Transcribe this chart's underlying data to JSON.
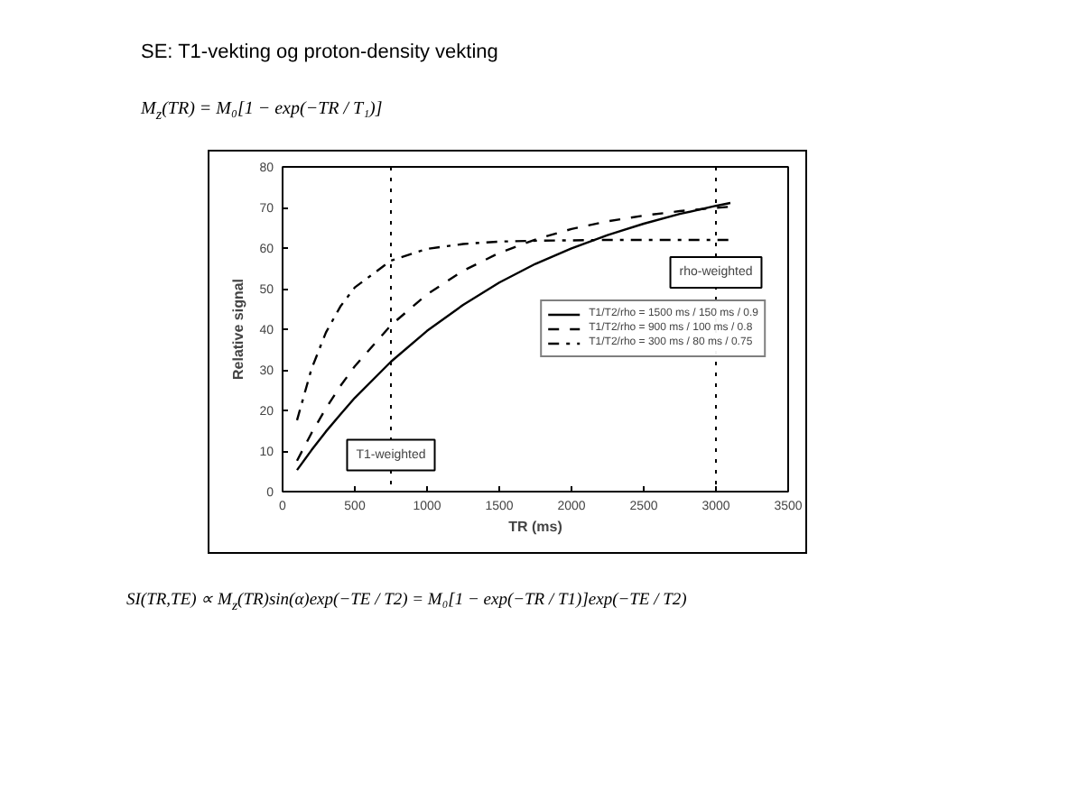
{
  "chart_data": {
    "type": "line",
    "title": "SE: T1-vekting og proton-density vekting",
    "subtitle": "M$_{z}$(TR) = M₀[1 − exp(−TR / T₁)]",
    "xlabel": "TR (ms)",
    "ylabel": "Relative signal",
    "xlim": [
      0,
      3500
    ],
    "xticks": [
      0,
      500,
      1000,
      1500,
      2000,
      2500,
      3000,
      3500
    ],
    "ylim": [
      0,
      80
    ],
    "yticks": [
      0,
      10,
      20,
      30,
      40,
      50,
      60,
      70,
      80
    ],
    "x": [
      100,
      200,
      300,
      400,
      500,
      750,
      1000,
      1250,
      1500,
      1750,
      2000,
      2250,
      2500,
      2750,
      3000,
      3100
    ],
    "series": [
      {
        "name": "T1/T2/rho = 1500 ms / 150 ms / 0.9",
        "color": "#000000",
        "line_style": "solid",
        "values": [
          5.3,
          10.2,
          14.8,
          19.0,
          23.1,
          32.0,
          39.6,
          46.0,
          51.5,
          56.1,
          59.9,
          63.2,
          66.0,
          68.4,
          70.4,
          71.1
        ]
      },
      {
        "name": "T1/T2/rho = 900 ms / 100 ms / 0.8",
        "color": "#000000",
        "line_style": "dashed",
        "values": [
          7.6,
          14.4,
          20.5,
          26.0,
          30.9,
          41.0,
          48.6,
          54.4,
          58.8,
          62.1,
          64.7,
          66.6,
          68.0,
          69.1,
          69.9,
          70.2
        ]
      },
      {
        "name": "T1/T2/rho = 300 ms / 80 ms / 0.75",
        "color": "#000000",
        "line_style": "dashdot",
        "values": [
          17.6,
          30.2,
          39.2,
          45.6,
          50.3,
          56.9,
          59.8,
          61.0,
          61.6,
          61.8,
          61.9,
          62.0,
          62.0,
          62.0,
          62.0,
          62.0
        ]
      }
    ],
    "ref_lines": [
      {
        "axis": "x",
        "value": 750,
        "line_style": "dotted",
        "color": "#000000"
      },
      {
        "axis": "x",
        "value": 3000,
        "line_style": "dotted",
        "color": "#000000"
      }
    ],
    "annotations": [
      {
        "text": "T1-weighted",
        "x": 750,
        "y": 9
      },
      {
        "text": "rho-weighted",
        "x": 3000,
        "y": 54
      },
      "SI(TR,TE) ∝ M$_{z}$(TR)sin(α)exp(−TE / T2) = M₀[1 − exp(−TR / T1)]exp(−TE / T2)"
    ],
    "legend": "right",
    "grid": false,
    "marker": "none"
  }
}
